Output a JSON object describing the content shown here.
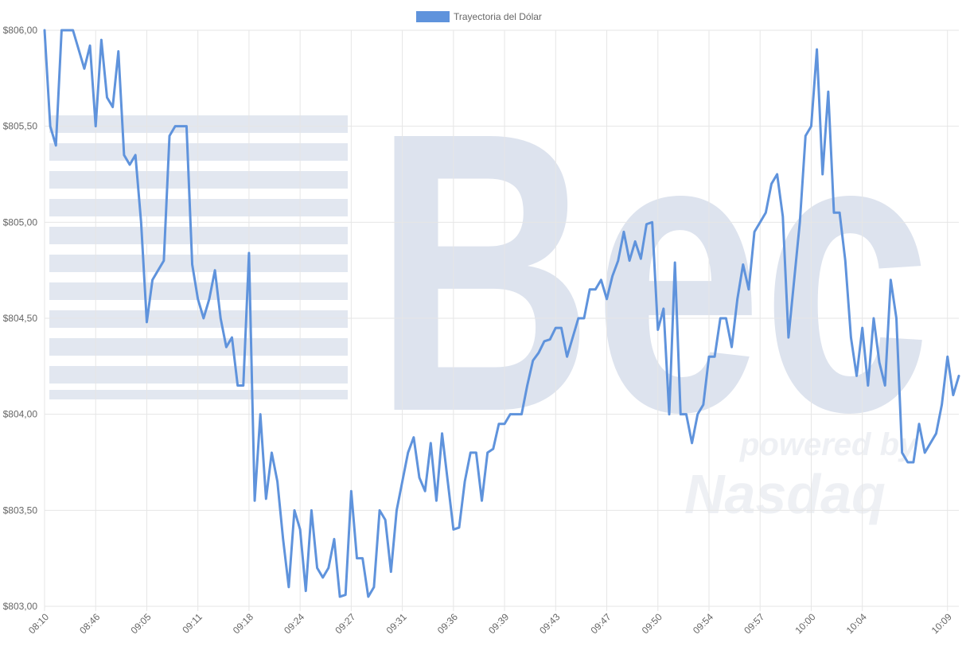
{
  "watermark": {
    "logo_text": "Bec",
    "sub_text_1": "powered by",
    "sub_text_2": "Nasdaq"
  },
  "chart_data": {
    "type": "line",
    "legend": {
      "position": "top-center",
      "entries": [
        "Trayectoria del Dólar"
      ]
    },
    "series": [
      {
        "name": "Trayectoria del Dólar",
        "color": "#5f93dc",
        "values": [
          806.0,
          805.5,
          805.4,
          806.0,
          806.0,
          806.0,
          805.9,
          805.8,
          805.92,
          805.5,
          805.95,
          805.65,
          805.6,
          805.89,
          805.35,
          805.3,
          805.35,
          805.0,
          804.48,
          804.7,
          804.75,
          804.8,
          805.45,
          805.5,
          805.5,
          805.5,
          804.78,
          804.6,
          804.5,
          804.6,
          804.75,
          804.5,
          804.35,
          804.4,
          804.15,
          804.15,
          804.84,
          803.55,
          804.0,
          803.56,
          803.8,
          803.65,
          803.35,
          803.1,
          803.5,
          803.4,
          803.08,
          803.5,
          803.2,
          803.15,
          803.2,
          803.35,
          803.05,
          803.06,
          803.6,
          803.25,
          803.25,
          803.05,
          803.1,
          803.5,
          803.45,
          803.18,
          803.5,
          803.65,
          803.8,
          803.88,
          803.67,
          803.6,
          803.85,
          803.55,
          803.9,
          803.65,
          803.4,
          803.41,
          803.65,
          803.8,
          803.8,
          803.55,
          803.8,
          803.82,
          803.95,
          803.95,
          804.0,
          804.0,
          804.0,
          804.15,
          804.28,
          804.32,
          804.38,
          804.39,
          804.45,
          804.45,
          804.3,
          804.4,
          804.5,
          804.5,
          804.65,
          804.65,
          804.7,
          804.6,
          804.72,
          804.8,
          804.95,
          804.8,
          804.9,
          804.81,
          804.99,
          805.0,
          804.44,
          804.55,
          804.0,
          804.79,
          804.0,
          804.0,
          803.85,
          804.0,
          804.05,
          804.3,
          804.3,
          804.5,
          804.5,
          804.35,
          804.6,
          804.78,
          804.65,
          804.95,
          805.0,
          805.05,
          805.2,
          805.25,
          805.03,
          804.4,
          804.7,
          805.0,
          805.45,
          805.5,
          805.9,
          805.25,
          805.68,
          805.05,
          805.05,
          804.8,
          804.4,
          804.2,
          804.45,
          804.15,
          804.5,
          804.27,
          804.15,
          804.7,
          804.5,
          803.8,
          803.75,
          803.75,
          803.95,
          803.8,
          803.85,
          803.9,
          804.05,
          804.3,
          804.1,
          804.2
        ]
      }
    ],
    "x_ticks": [
      "08:10",
      "08:46",
      "09:05",
      "09:11",
      "09:18",
      "09:24",
      "09:27",
      "09:31",
      "09:36",
      "09:39",
      "09:43",
      "09:47",
      "09:50",
      "09:54",
      "09:57",
      "10:00",
      "10:04",
      "10:09"
    ],
    "x_tick_index": [
      0,
      9,
      18,
      27,
      36,
      45,
      54,
      63,
      72,
      81,
      90,
      99,
      108,
      117,
      126,
      135,
      144,
      159
    ],
    "y_ticks": [
      "$806,00",
      "$805,50",
      "$805,00",
      "$804,50",
      "$804,00",
      "$803,50",
      "$803,00"
    ],
    "ylim": [
      803.0,
      806.0
    ],
    "grid": true
  }
}
